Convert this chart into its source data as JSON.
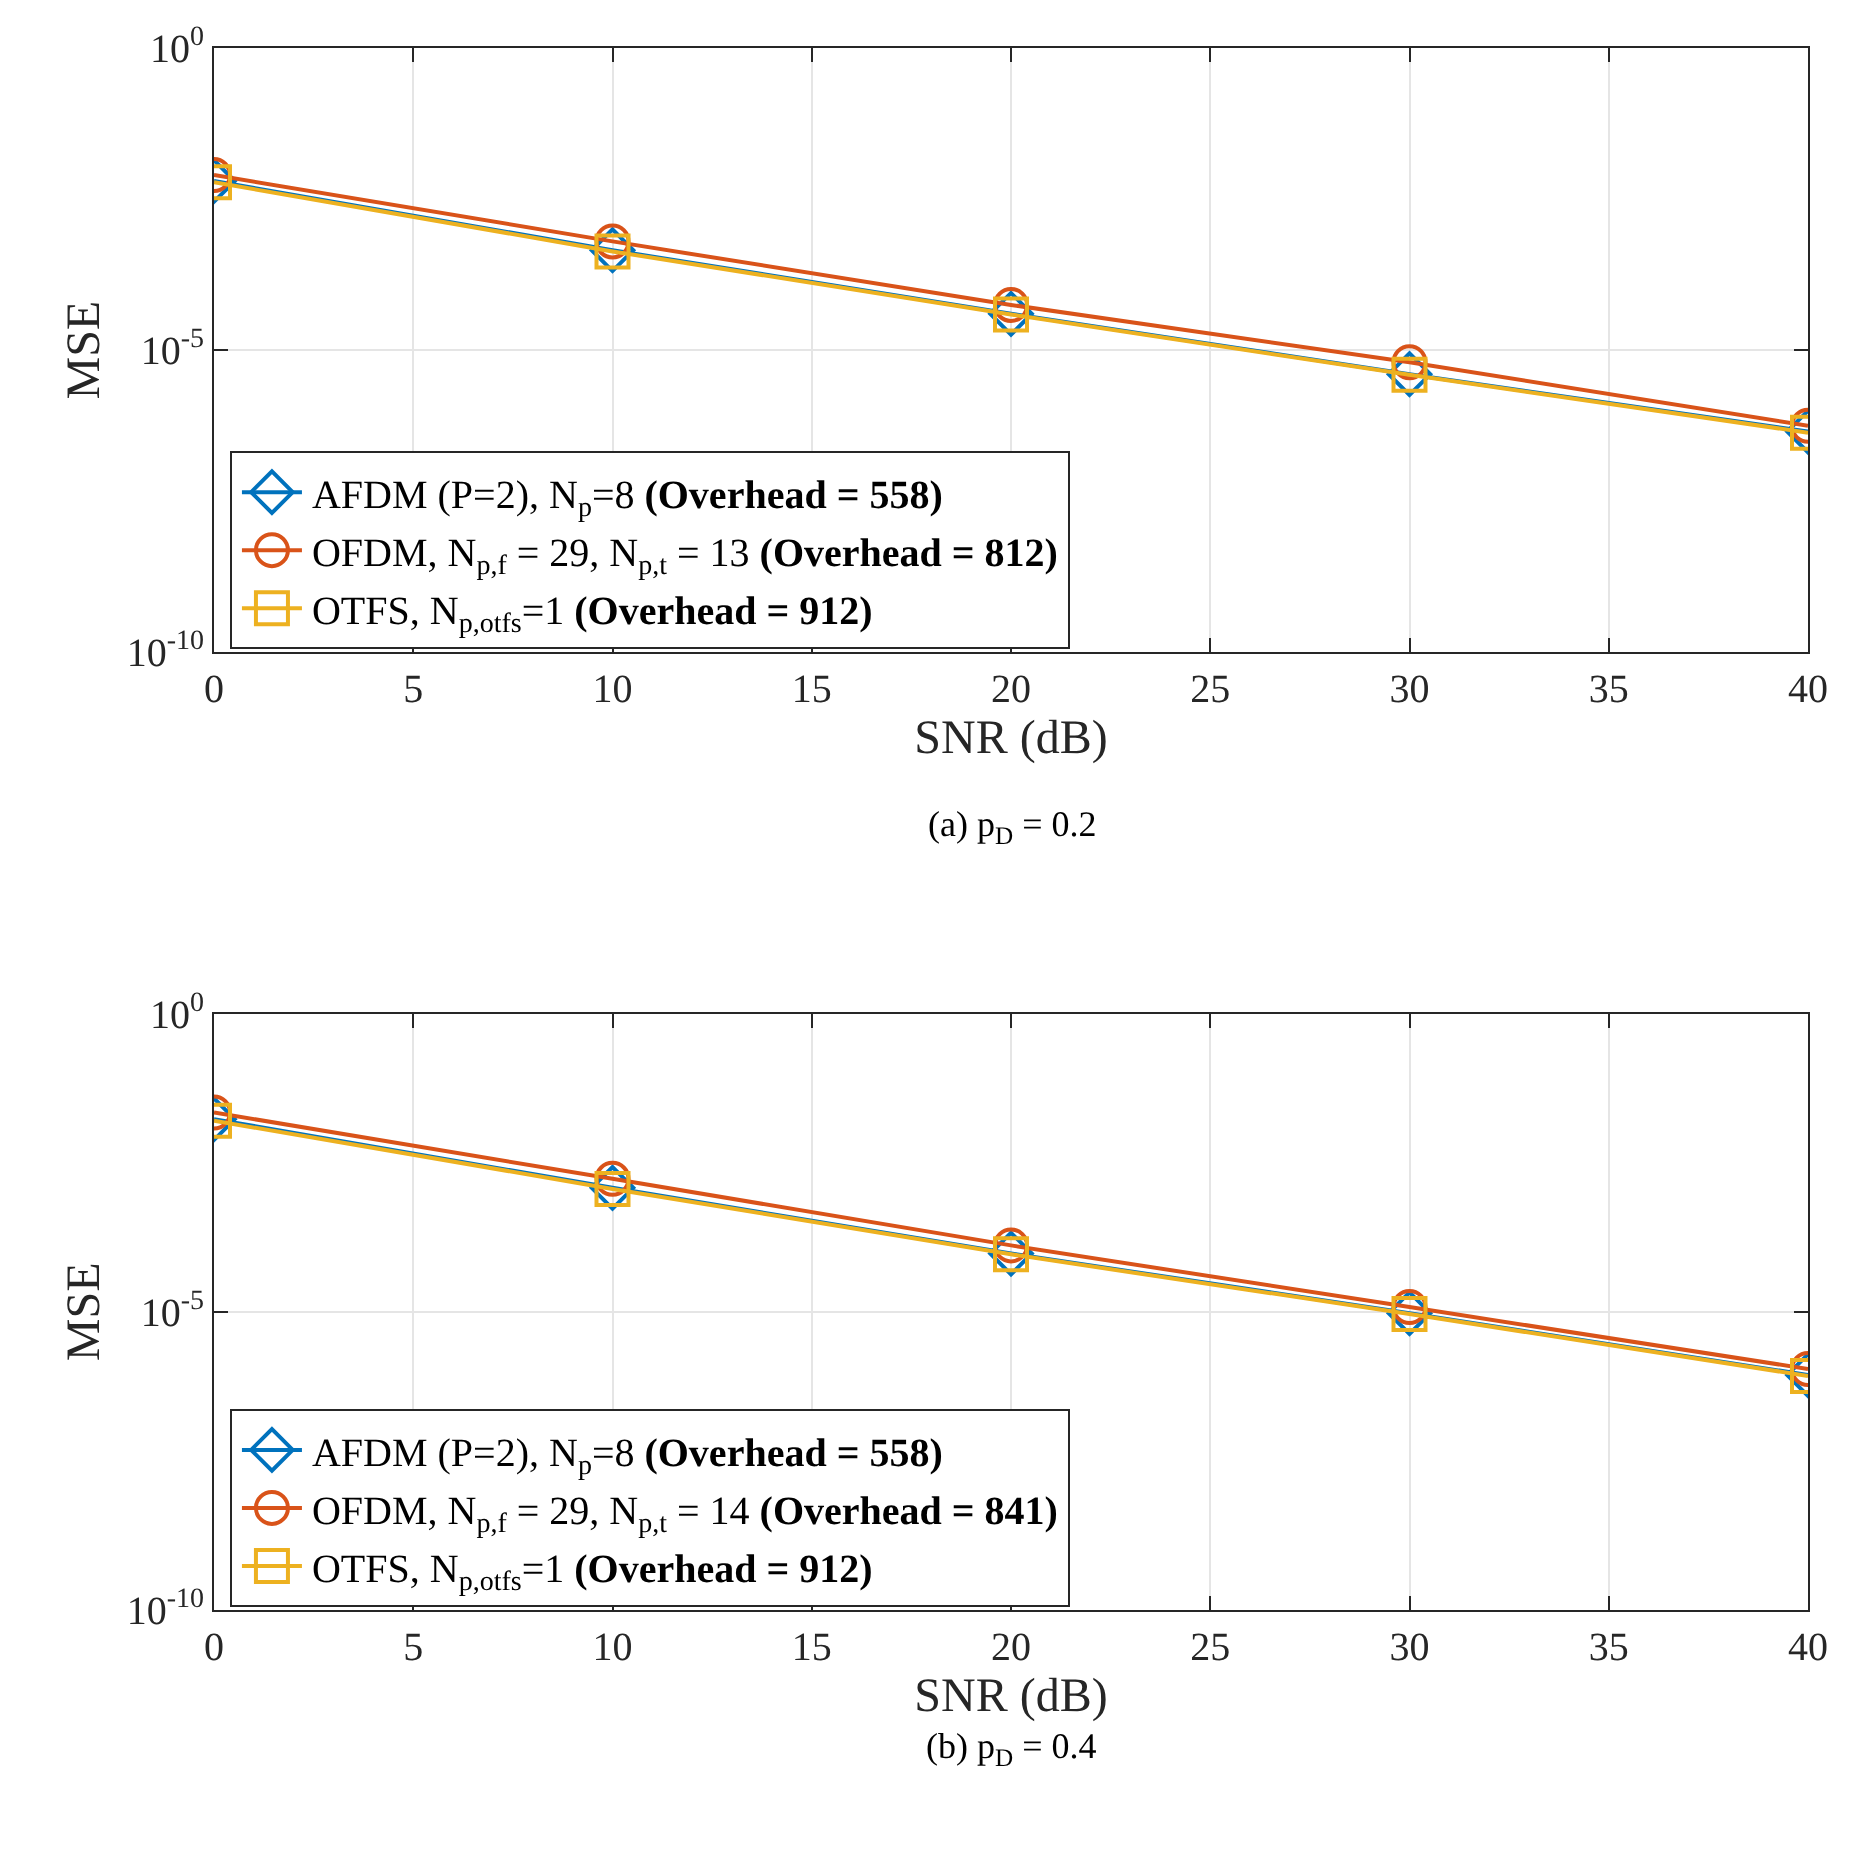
{
  "chart_data": [
    {
      "type": "line",
      "xlabel": "SNR (dB)",
      "ylabel": "MSE",
      "log": true,
      "grid": true,
      "legend": "bottom left",
      "x": [
        0,
        10,
        20,
        30,
        40
      ],
      "xlim": [
        0,
        40
      ],
      "xticks": [
        0,
        5,
        10,
        15,
        20,
        25,
        30,
        35,
        40
      ],
      "ylim": [
        1e-10,
        1
      ],
      "yticks": [
        {
          "value": 1e-10,
          "label": "10$^{-10}$"
        },
        {
          "value": 1e-05,
          "label": "10$^{-5}$"
        },
        {
          "value": 1,
          "label": "10$^{0}$"
        }
      ],
      "annotations": [
        "(a) p$_{D}$ = 0.2"
      ],
      "series": [
        {
          "name": "AFDM (P=2), N$_{p}$=8 (Overhead = 558)",
          "color": "#0072bd",
          "marker": "diamond",
          "values": [
            0.0063,
            0.00045,
            4e-05,
            4e-06,
            4.5e-07
          ]
        },
        {
          "name": "OFDM, N$_{p,f}$ = 29, N$_{p,t}$ = 13 (Overhead = 812)",
          "color": "#d95319",
          "marker": "circle",
          "values": [
            0.0079,
            0.00063,
            5.6e-05,
            6.3e-06,
            5.6e-07
          ]
        },
        {
          "name": "OTFS, N$_{p,otfs}$=1 (Overhead = 912)",
          "color": "#edb120",
          "marker": "square",
          "values": [
            0.006,
            0.00043,
            3.9e-05,
            3.9e-06,
            4.3e-07
          ]
        }
      ]
    },
    {
      "type": "line",
      "xlabel": "SNR (dB)",
      "ylabel": "MSE",
      "log": true,
      "grid": true,
      "legend": "bottom left",
      "x": [
        0,
        10,
        20,
        30,
        40
      ],
      "xlim": [
        0,
        40
      ],
      "xticks": [
        0,
        5,
        10,
        15,
        20,
        25,
        30,
        35,
        40
      ],
      "ylim": [
        1e-10,
        1
      ],
      "yticks": [
        {
          "value": 1e-10,
          "label": "10$^{-10}$"
        },
        {
          "value": 1e-05,
          "label": "10$^{-5}$"
        },
        {
          "value": 1,
          "label": "10$^{0}$"
        }
      ],
      "annotations": [
        "(b) p$_{D}$ = 0.4"
      ],
      "series": [
        {
          "name": "AFDM (P=2), N$_{p}$=8 (Overhead = 558)",
          "color": "#0072bd",
          "marker": "diamond",
          "values": [
            0.017,
            0.0012,
            9.5e-05,
            9.5e-06,
            8.7e-07
          ]
        },
        {
          "name": "OFDM, N$_{p,f}$ = 29, N$_{p,t}$ = 14 (Overhead = 841)",
          "color": "#d95319",
          "marker": "circle",
          "values": [
            0.022,
            0.0017,
            0.00013,
            1.2e-05,
            1.1e-06
          ]
        },
        {
          "name": "OTFS, N$_{p,otfs}$=1 (Overhead = 912)",
          "color": "#edb120",
          "marker": "square",
          "values": [
            0.016,
            0.00115,
            9.2e-05,
            9.2e-06,
            8.4e-07
          ]
        }
      ]
    }
  ]
}
